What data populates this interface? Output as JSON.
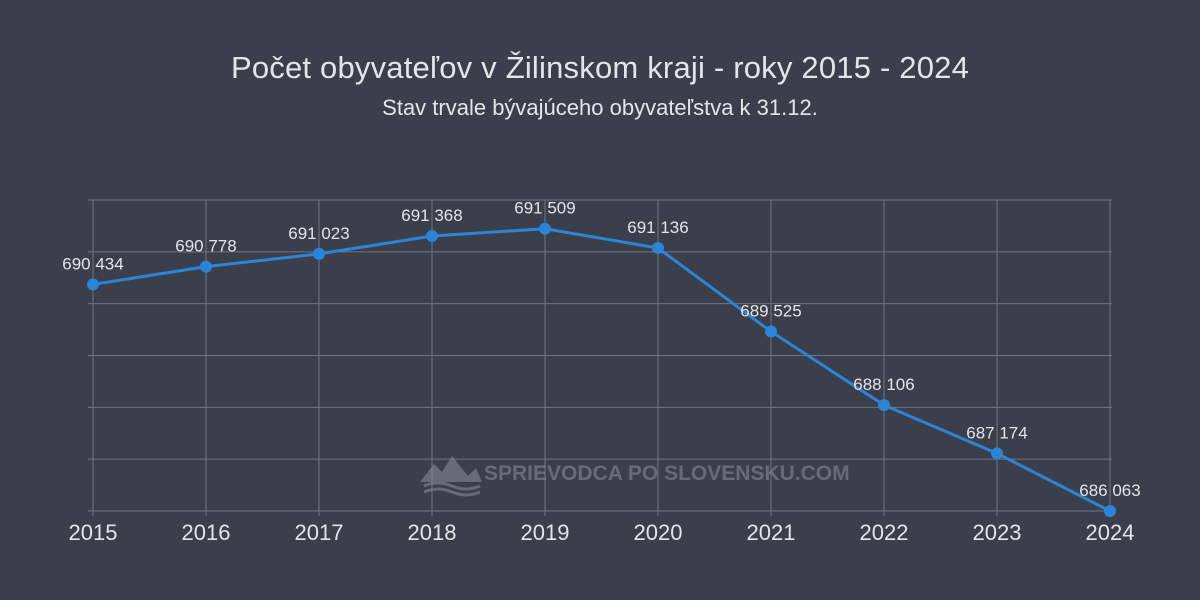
{
  "chart_data": {
    "type": "line",
    "title": "Počet obyvateľov v Žilinskom kraji - roky 2015 - 2024",
    "subtitle": "Stav trvale bývajúceho obyvateľstva k 31.12.",
    "categories": [
      "2015",
      "2016",
      "2017",
      "2018",
      "2019",
      "2020",
      "2021",
      "2022",
      "2023",
      "2024"
    ],
    "series": [
      {
        "values": [
          690434,
          690778,
          691023,
          691368,
          691509,
          691136,
          689525,
          688106,
          687174,
          686063
        ],
        "labels": [
          "690 434",
          "690 778",
          "691 023",
          "691 368",
          "691 509",
          "691 136",
          "689 525",
          "688 106",
          "687 174",
          "686 063"
        ],
        "color": "#2c84d6"
      }
    ],
    "xlabel": "",
    "ylabel": "",
    "ylim": [
      686063,
      692063
    ],
    "grid": true,
    "legend": "none"
  },
  "watermark": {
    "text": "SPRIEVODCA PO SLOVENSKU.COM",
    "icon": "mountain-logo-icon"
  },
  "colors": {
    "background": "#3a3f4b",
    "text": "#e3e5e8",
    "grid": "#6f7480",
    "line": "#2c84d6"
  }
}
